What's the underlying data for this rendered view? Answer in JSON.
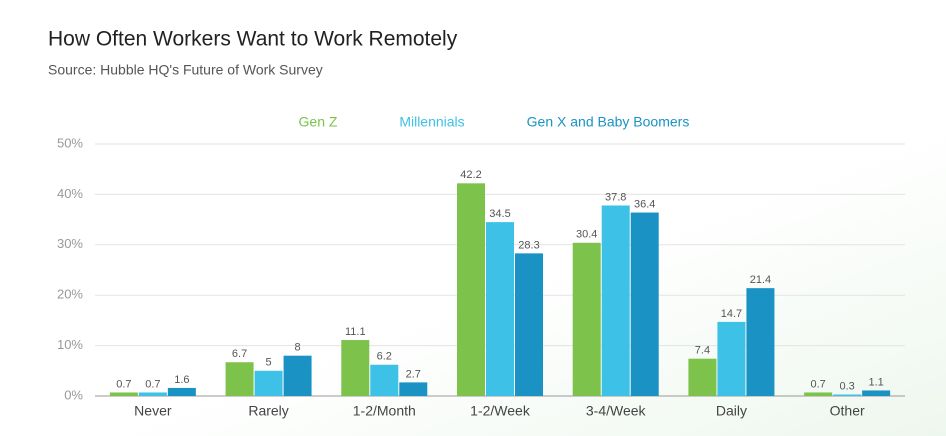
{
  "chart_data": {
    "type": "grouped_bar",
    "title": "How Often Workers Want to Work Remotely",
    "subtitle": "Source: Hubble HQ's Future of Work Survey",
    "categories": [
      "Never",
      "Rarely",
      "1-2/Month",
      "1-2/Week",
      "3-4/Week",
      "Daily",
      "Other"
    ],
    "series": [
      {
        "name": "Gen Z",
        "color": "#7dc24b",
        "values": [
          0.7,
          6.7,
          11.1,
          42.2,
          30.4,
          7.4,
          0.7
        ]
      },
      {
        "name": "Millennials",
        "color": "#3ec1e6",
        "values": [
          0.7,
          5,
          6.2,
          34.5,
          37.8,
          14.7,
          0.3
        ]
      },
      {
        "name": "Gen X and Baby Boomers",
        "color": "#1a93c4",
        "values": [
          1.6,
          8,
          2.7,
          28.3,
          36.4,
          21.4,
          1.1
        ]
      }
    ],
    "ylim": [
      0,
      50
    ],
    "yticks": [
      {
        "value": 0,
        "label": "0%"
      },
      {
        "value": 10,
        "label": "10%"
      },
      {
        "value": 20,
        "label": "20%"
      },
      {
        "value": 30,
        "label": "30%"
      },
      {
        "value": 40,
        "label": "40%"
      },
      {
        "value": 50,
        "label": "50%"
      }
    ],
    "grid": true
  }
}
